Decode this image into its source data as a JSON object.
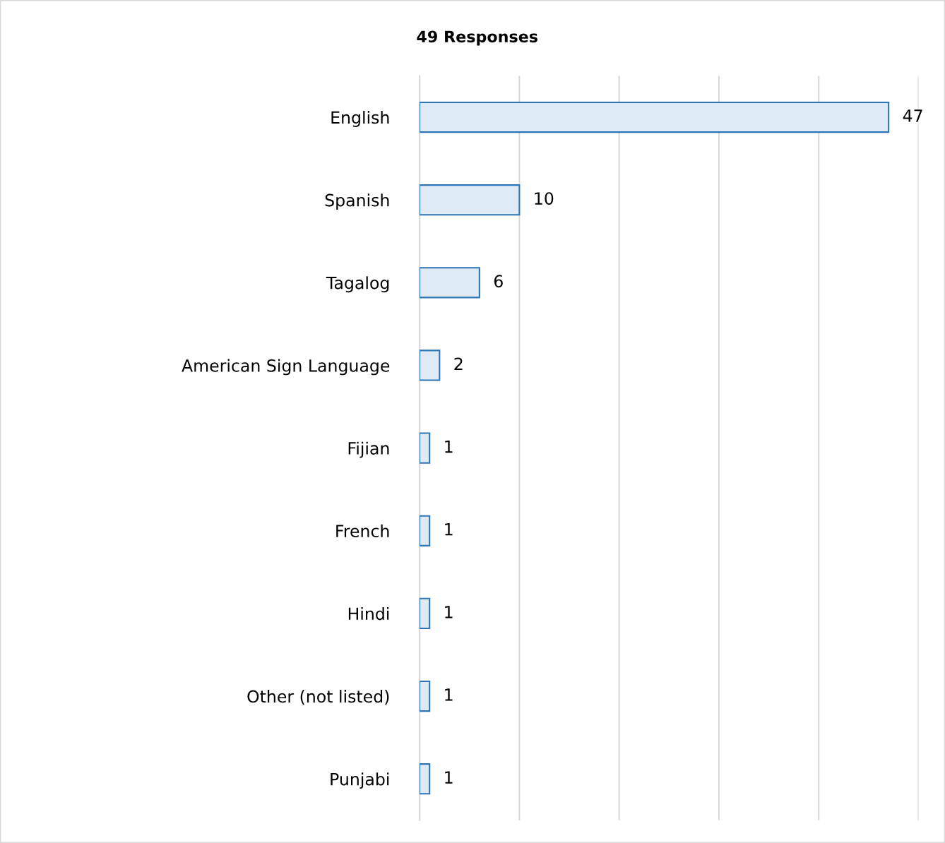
{
  "chart_data": {
    "type": "bar",
    "orientation": "horizontal",
    "title": "49 Responses",
    "categories": [
      "English",
      "Spanish",
      "Tagalog",
      "American Sign Language",
      "Fijian",
      "French",
      "Hindi",
      "Other (not listed)",
      "Punjabi"
    ],
    "values": [
      47,
      10,
      6,
      2,
      1,
      1,
      1,
      1,
      1
    ],
    "color": "#deeaf6",
    "xlim": [
      0,
      50
    ],
    "xticks": [
      {
        "value": 0,
        "label": null
      },
      {
        "value": 10,
        "label": null
      },
      {
        "value": 20,
        "label": null
      },
      {
        "value": 30,
        "label": null
      },
      {
        "value": 40,
        "label": null
      },
      {
        "value": 50,
        "label": null
      }
    ],
    "tick_labels": "y",
    "grid": "x",
    "data_labels": true,
    "legend": false
  }
}
